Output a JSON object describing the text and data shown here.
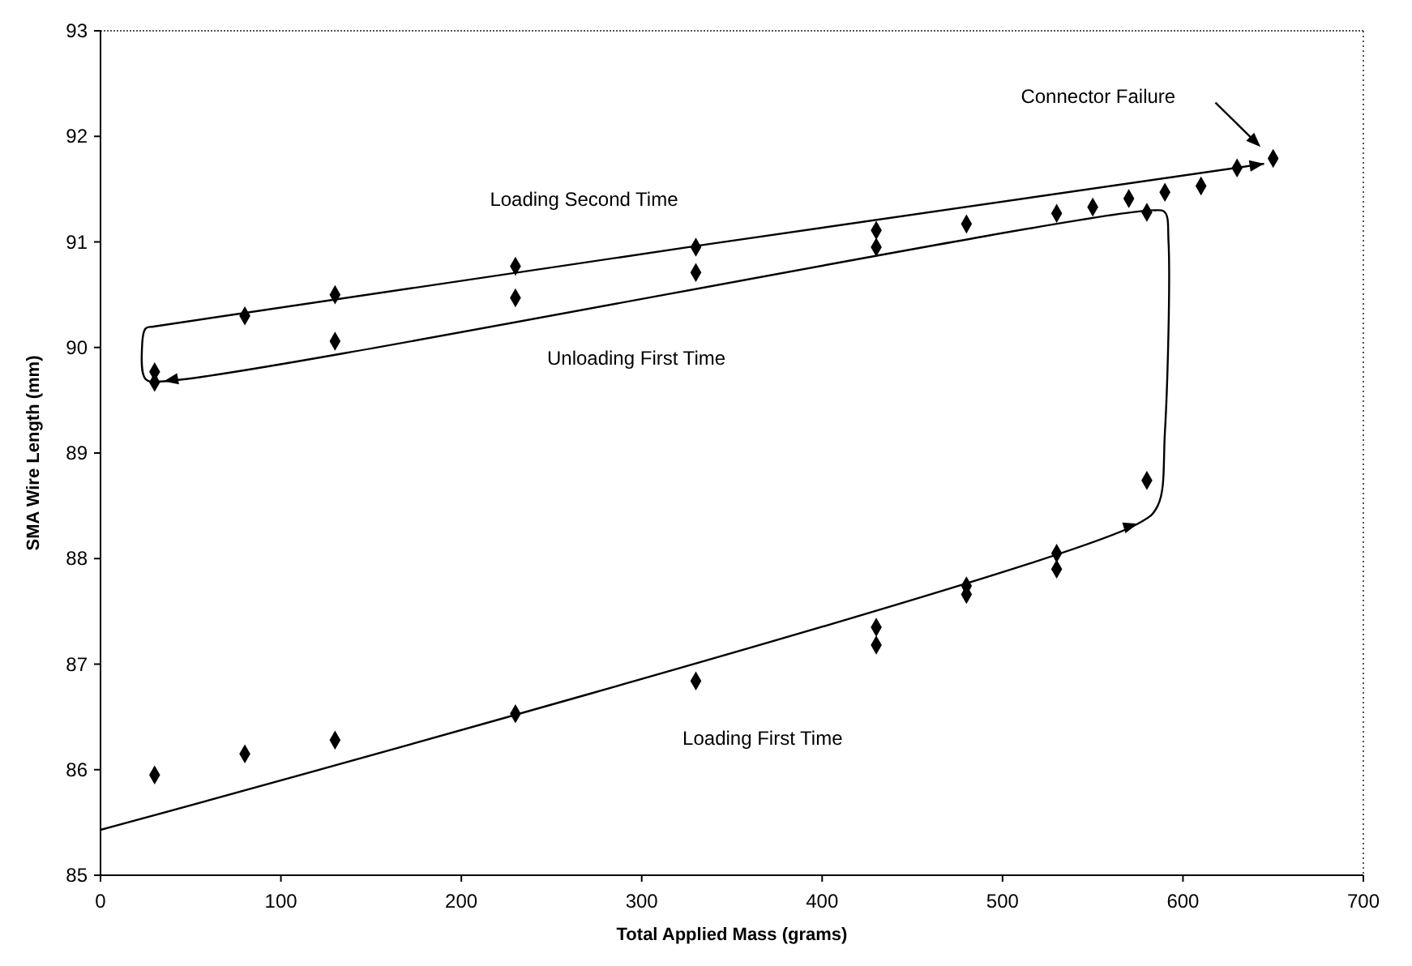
{
  "chart_data": {
    "type": "scatter",
    "xlabel": "Total Applied Mass (grams)",
    "ylabel": "SMA Wire Length (mm)",
    "series": [
      {
        "color": "#000000",
        "marker": "diamond",
        "x": [
          30,
          80,
          130,
          230,
          330,
          430,
          430,
          480,
          480,
          530,
          530,
          580,
          30,
          30,
          80,
          130,
          130,
          230,
          230,
          330,
          330,
          430,
          430,
          480,
          530,
          550,
          570,
          580,
          590,
          610,
          630,
          650
        ],
        "values": [
          85.95,
          86.15,
          86.28,
          86.53,
          86.84,
          87.18,
          87.35,
          87.66,
          87.74,
          87.9,
          88.05,
          88.74,
          89.77,
          89.67,
          90.3,
          90.5,
          90.06,
          90.77,
          90.47,
          90.95,
          90.71,
          91.11,
          90.95,
          91.17,
          91.27,
          91.33,
          91.41,
          91.28,
          91.47,
          91.53,
          91.7,
          91.79
        ]
      },
      {
        "type": "line",
        "color": "#000000",
        "marker": "none",
        "line_style": "solid",
        "x": [
          0,
          575,
          586,
          590,
          592,
          590,
          584,
          35,
          25,
          23,
          25,
          30,
          645
        ],
        "values": [
          85.43,
          88.33,
          88.5,
          89.2,
          91.0,
          91.28,
          91.3,
          89.68,
          89.7,
          90.0,
          90.18,
          90.2,
          91.74
        ]
      }
    ],
    "xlim": [
      0,
      700
    ],
    "xticks": [
      0,
      100,
      200,
      300,
      400,
      500,
      600,
      700
    ],
    "ylim": [
      85,
      93
    ],
    "yticks": [
      85,
      86,
      87,
      88,
      89,
      90,
      91,
      92,
      93
    ],
    "annotations": [
      "Loading Second Time",
      "Unloading First Time",
      "Loading First Time",
      "Connector Failure"
    ]
  }
}
